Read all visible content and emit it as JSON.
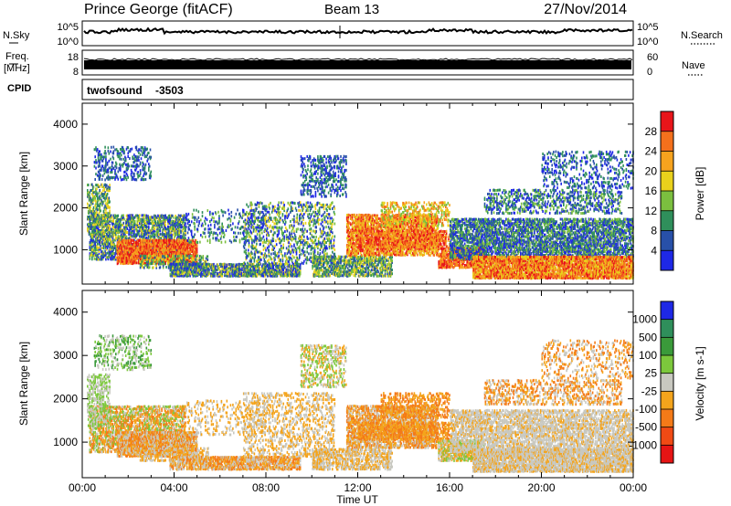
{
  "header": {
    "station": "Prince George (fitACF)",
    "beam": "Beam 13",
    "date": "27/Nov/2014"
  },
  "noise_panel": {
    "left_label": "N.Sky",
    "right_label": "N.Search",
    "left_ticks": [
      "10^5",
      "10^0"
    ],
    "right_ticks": [
      "10^5",
      "10^0"
    ]
  },
  "freq_panel": {
    "left_label_1": "Freq.",
    "left_label_2": "[MHz]",
    "right_label": "Nave",
    "left_ticks": [
      "18",
      "8"
    ],
    "right_ticks": [
      "60",
      "0"
    ]
  },
  "cpid_panel": {
    "label": "CPID",
    "program": "twofsound",
    "id": "-3503"
  },
  "chart_data": [
    {
      "type": "heatmap",
      "title": "",
      "ylabel": "Slant Range [km]",
      "xlabel": "",
      "x_ticks": [
        "00:00",
        "04:00",
        "08:00",
        "12:00",
        "16:00",
        "20:00",
        "00:00"
      ],
      "y_ticks": [
        "1000",
        "2000",
        "3000",
        "4000"
      ],
      "ylim": [
        180,
        4500
      ],
      "xlim_hours": [
        0,
        24
      ],
      "colorbar": {
        "label": "Power [dB]",
        "ticks": [
          "28",
          "24",
          "20",
          "16",
          "12",
          "8",
          "4"
        ],
        "colors": [
          "#e8151a",
          "#f4701c",
          "#f7a31e",
          "#e9d11c",
          "#7bbf3f",
          "#2f8f5b",
          "#2850a8",
          "#1e28e6"
        ]
      }
    },
    {
      "type": "heatmap",
      "title": "",
      "ylabel": "Slant Range [km]",
      "xlabel": "Time UT",
      "x_ticks": [
        "00:00",
        "04:00",
        "08:00",
        "12:00",
        "16:00",
        "20:00",
        "00:00"
      ],
      "y_ticks": [
        "1000",
        "2000",
        "3000",
        "4000"
      ],
      "ylim": [
        180,
        4500
      ],
      "xlim_hours": [
        0,
        24
      ],
      "colorbar": {
        "label": "Velocity [m s-1]",
        "ticks": [
          "1000",
          "500",
          "100",
          "25",
          "-25",
          "-100",
          "-500",
          "-1000"
        ],
        "colors": [
          "#1e28e6",
          "#2f8f5b",
          "#3a9a3a",
          "#7cc83c",
          "#c8c8c0",
          "#f4a41c",
          "#f47a18",
          "#f04a14",
          "#e61414"
        ]
      }
    }
  ]
}
